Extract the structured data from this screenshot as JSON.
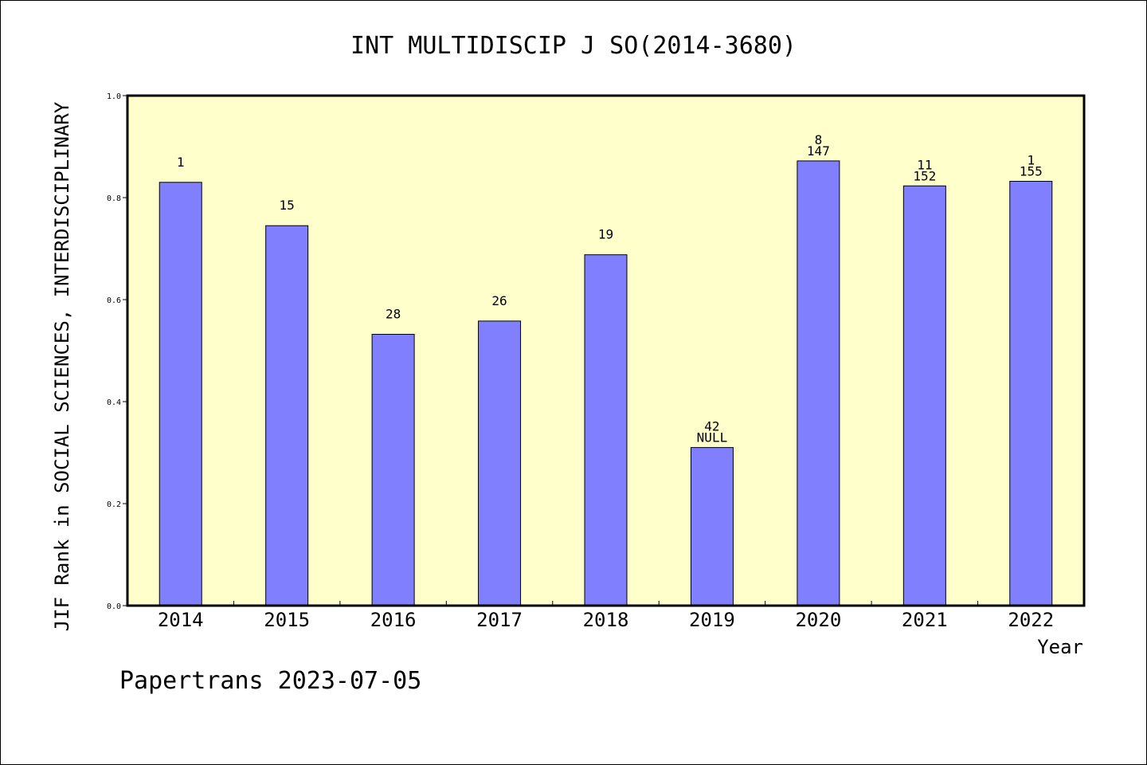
{
  "chart_data": {
    "type": "bar",
    "title": "INT MULTIDISCIP J SO(2014-3680)",
    "xlabel": "Year",
    "ylabel": "JIF Rank in SOCIAL SCIENCES, INTERDISCIPLINARY",
    "ylim": [
      0,
      1.0
    ],
    "yticks": [
      "0.0",
      "0.2",
      "0.4",
      "0.6",
      "0.8",
      "1.0"
    ],
    "categories": [
      "2014",
      "2015",
      "2016",
      "2017",
      "2018",
      "2019",
      "2020",
      "2021",
      "2022"
    ],
    "values": [
      0.83,
      0.745,
      0.532,
      0.558,
      0.688,
      0.31,
      0.872,
      0.823,
      0.832
    ],
    "rank_labels": [
      "1",
      "15",
      "28",
      "26",
      "19",
      "42",
      "8",
      "11",
      "1"
    ],
    "total_labels": [
      "",
      "",
      "",
      "",
      "",
      "NULL",
      "147",
      "152",
      "155"
    ],
    "grid": false,
    "colors": {
      "bar": "#8080ff",
      "plot_background": "#ffffcc"
    }
  },
  "footer": {
    "credit": "Papertrans 2023-07-05"
  }
}
